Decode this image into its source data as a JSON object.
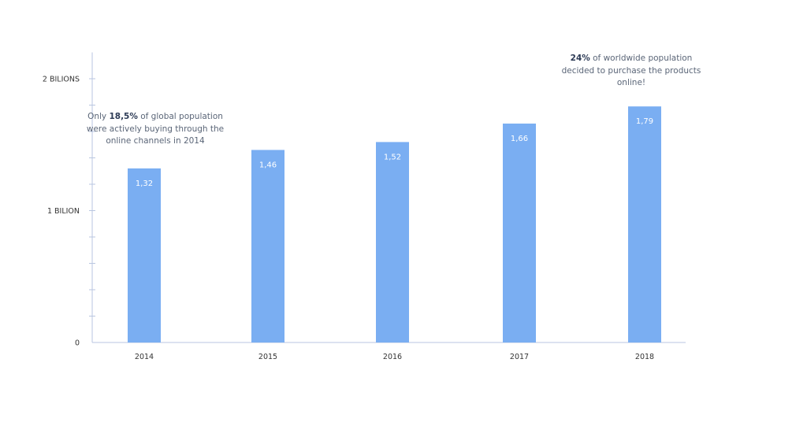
{
  "chart_data": {
    "type": "bar",
    "categories": [
      "2014",
      "2015",
      "2016",
      "2017",
      "2018"
    ],
    "values": [
      1.32,
      1.46,
      1.52,
      1.66,
      1.79
    ],
    "value_labels": [
      "1,32",
      "1,46",
      "1,52",
      "1,66",
      "1,79"
    ],
    "ylim": [
      0,
      2.2
    ],
    "yticks": [
      {
        "value": 0,
        "label": "0"
      },
      {
        "value": 1,
        "label": "1 BILION"
      },
      {
        "value": 2,
        "label": "2 BILIONS"
      }
    ],
    "minor_tick_step": 0.2,
    "grid": false,
    "bar_color": "#7aaef2",
    "axis_color": "#b9c6e0",
    "annotations": [
      {
        "category": "2014",
        "pre": "Only ",
        "bold": "18,5%",
        "post": " of global population were actively buying through the online channels in 2014"
      },
      {
        "category": "2018",
        "pre": "",
        "bold": "24%",
        "post": " of worldwide population decided to purchase the products online!"
      }
    ]
  }
}
